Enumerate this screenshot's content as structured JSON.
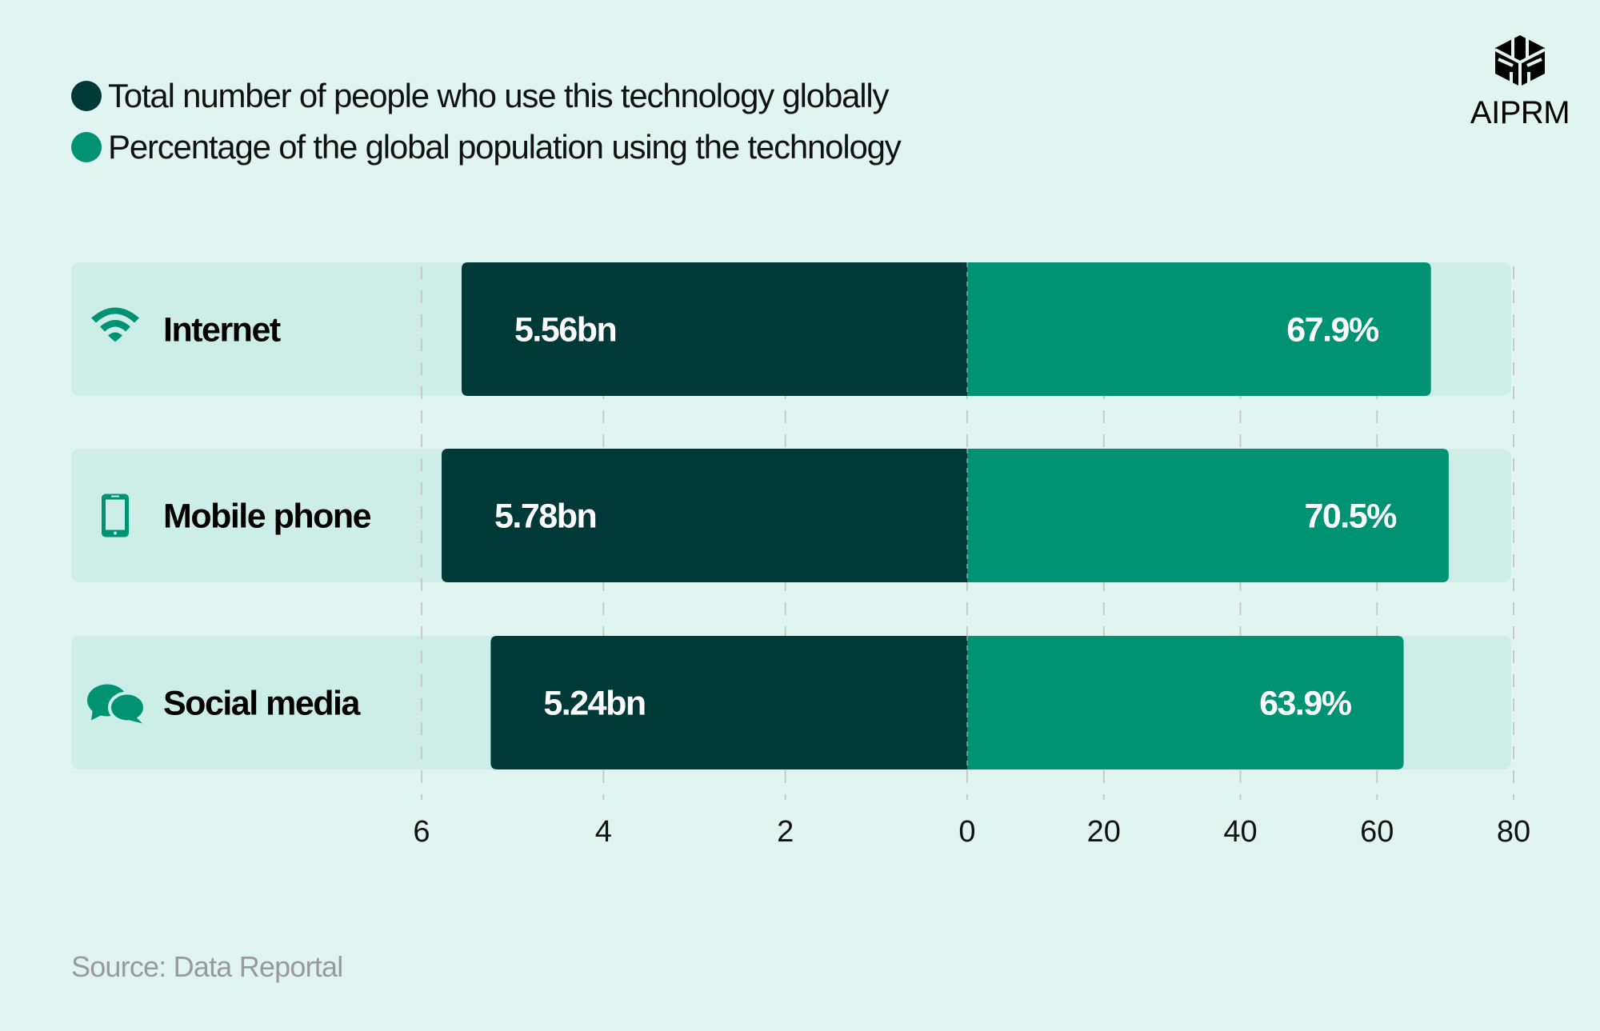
{
  "legend": [
    {
      "label": "Total number of people who use this technology globally",
      "color": "#003a38"
    },
    {
      "label": "Percentage of the global population using the technology",
      "color": "#009373"
    }
  ],
  "logo": {
    "text": "AIPRM"
  },
  "source": "Source: Data Reportal",
  "colors": {
    "background": "#e1f5f0",
    "row_background": "#cdeee6",
    "users": "#003a38",
    "percent": "#009373",
    "grid": "#c8c8c8"
  },
  "chart_data": {
    "type": "bar",
    "orientation": "horizontal-diverging",
    "categories": [
      "Internet",
      "Mobile phone",
      "Social media"
    ],
    "category_icons": [
      "wifi-icon",
      "mobile-phone-icon",
      "chat-bubbles-icon"
    ],
    "series": [
      {
        "name": "Total number of people who use this technology globally",
        "values": [
          5.56,
          5.78,
          5.24
        ],
        "labels": [
          "5.56bn",
          "5.78bn",
          "5.24bn"
        ],
        "unit": "bn",
        "axis_range": [
          0,
          6
        ],
        "direction": "left"
      },
      {
        "name": "Percentage of the global population using the technology",
        "values": [
          67.9,
          70.5,
          63.9
        ],
        "labels": [
          "67.9%",
          "70.5%",
          "63.9%"
        ],
        "unit": "%",
        "axis_range": [
          0,
          80
        ],
        "direction": "right"
      }
    ],
    "left_ticks": [
      "6",
      "4",
      "2",
      "0"
    ],
    "left_tick_values": [
      6,
      4,
      2,
      0
    ],
    "right_ticks": [
      "20",
      "40",
      "60",
      "80"
    ],
    "right_tick_values": [
      20,
      40,
      60,
      80
    ],
    "grid": true,
    "legend_position": "top-left"
  }
}
